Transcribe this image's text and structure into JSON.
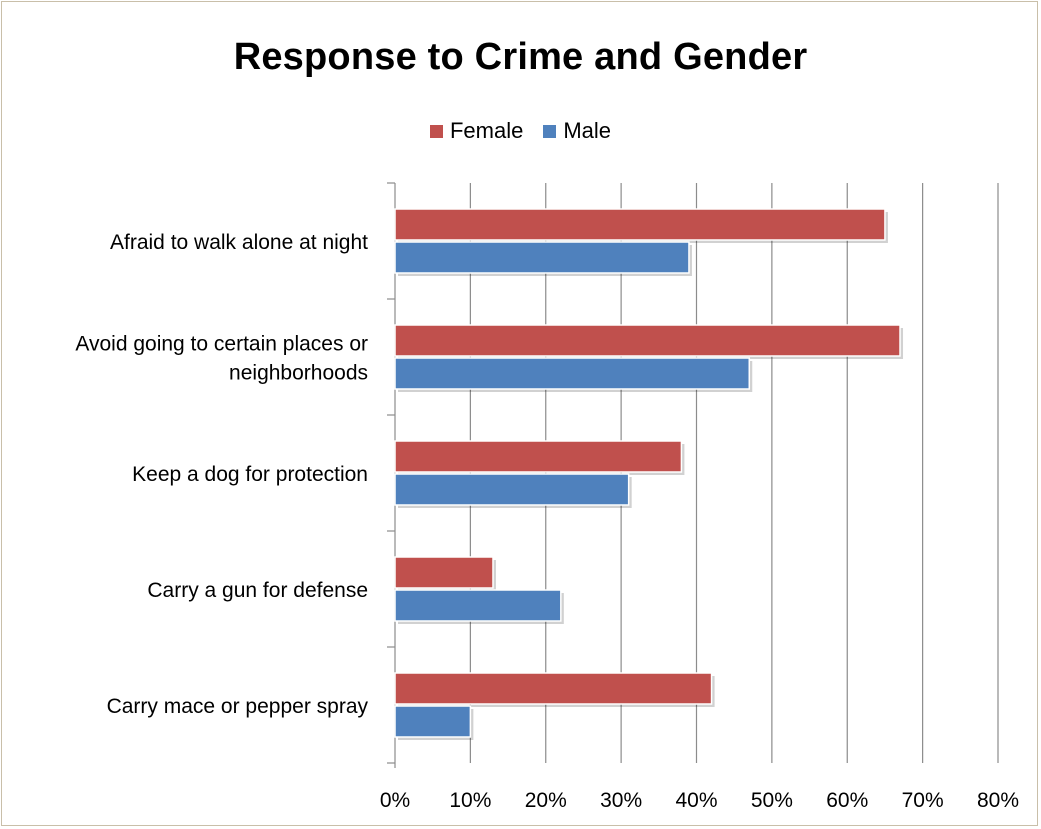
{
  "chart_data": {
    "type": "bar",
    "orientation": "horizontal",
    "title": "Response to Crime and Gender",
    "categories": [
      [
        "Afraid to walk alone at night"
      ],
      [
        "Avoid going to certain places or",
        "neighborhoods"
      ],
      [
        "Keep a dog for protection"
      ],
      [
        "Carry a gun for defense"
      ],
      [
        "Carry mace or pepper spray"
      ]
    ],
    "series": [
      {
        "name": "Female",
        "color": "#c0504d",
        "values": [
          0.65,
          0.67,
          0.38,
          0.13,
          0.42
        ]
      },
      {
        "name": "Male",
        "color": "#4f81bd",
        "values": [
          0.39,
          0.47,
          0.31,
          0.22,
          0.1
        ]
      }
    ],
    "xlim": [
      0,
      0.8
    ],
    "xticks": [
      "0%",
      "10%",
      "20%",
      "30%",
      "40%",
      "50%",
      "60%",
      "70%",
      "80%"
    ],
    "grid": true,
    "legend_position": "top"
  }
}
